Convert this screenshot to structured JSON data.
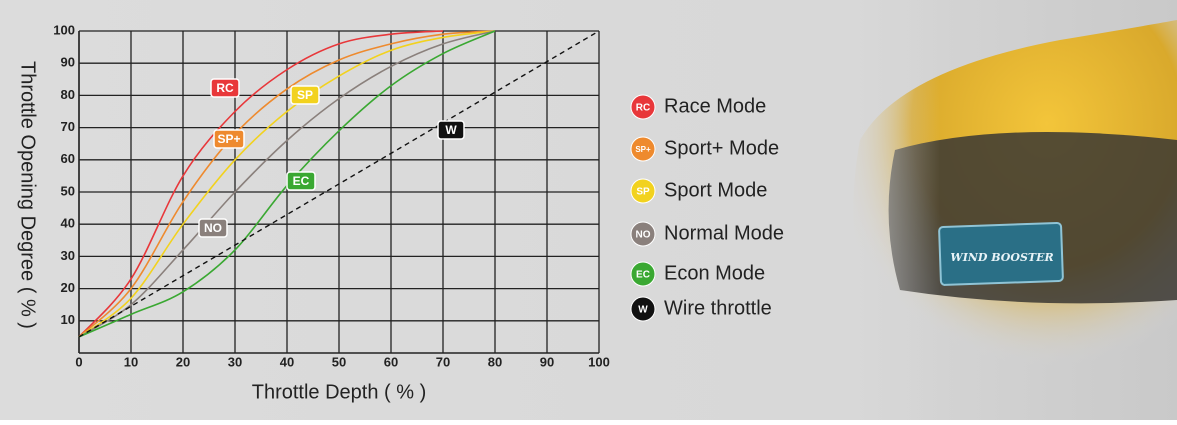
{
  "chart_data": {
    "type": "line",
    "xlabel": "Throttle Depth ( % )",
    "ylabel": "Throttle Opening Degree ( % )",
    "x": [
      0,
      10,
      20,
      30,
      40,
      50,
      60,
      70,
      80,
      90,
      100
    ],
    "xlim": [
      0,
      100
    ],
    "ylim": [
      0,
      100
    ],
    "xticks": [
      0,
      10,
      20,
      30,
      40,
      50,
      60,
      70,
      80,
      90,
      100
    ],
    "yticks": [
      10,
      20,
      30,
      40,
      50,
      60,
      70,
      80,
      90,
      100
    ],
    "grid": true,
    "series": [
      {
        "name": "Race Mode",
        "badge": "RC",
        "color": "#e8373a",
        "values": [
          5,
          23,
          55,
          75,
          88,
          96,
          99,
          100,
          null,
          null,
          null
        ]
      },
      {
        "name": "Sport+ Mode",
        "badge": "SP+",
        "color": "#ee8a2e",
        "values": [
          5,
          20,
          47,
          68,
          82,
          91,
          96,
          99,
          100,
          null,
          null
        ]
      },
      {
        "name": "Sport Mode",
        "badge": "SP",
        "color": "#f2d21e",
        "values": [
          5,
          17,
          40,
          60,
          75,
          86,
          94,
          98,
          100,
          null,
          null
        ]
      },
      {
        "name": "Normal Mode",
        "badge": "NO",
        "color": "#8a807c",
        "values": [
          5,
          15,
          32,
          50,
          66,
          79,
          89,
          96,
          100,
          null,
          null
        ]
      },
      {
        "name": "Econ Mode",
        "badge": "EC",
        "color": "#3aa832",
        "values": [
          5,
          12,
          19,
          32,
          52,
          69,
          83,
          93,
          100,
          null,
          null
        ]
      },
      {
        "name": "Wire throttle",
        "badge": "W",
        "color": "#111111",
        "dashed": true,
        "values": [
          5,
          14.5,
          24,
          33.5,
          43,
          52.5,
          62,
          71.5,
          81,
          90.5,
          100
        ]
      }
    ]
  },
  "image_text": "WIND BOOSTER"
}
